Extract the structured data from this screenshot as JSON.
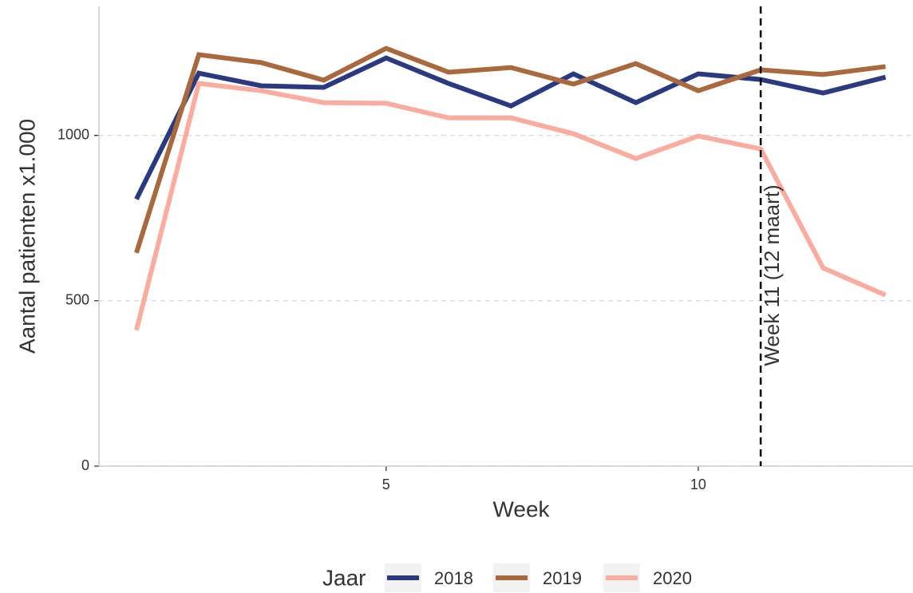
{
  "chart_data": {
    "type": "line",
    "xlabel": "Week",
    "ylabel": "Aantal patienten x1.000",
    "x": [
      1,
      2,
      3,
      4,
      5,
      6,
      7,
      8,
      9,
      10,
      11,
      12,
      13
    ],
    "series": [
      {
        "name": "2018",
        "color": "#2b3a7e",
        "values": [
          807,
          1188,
          1150,
          1145,
          1234,
          1157,
          1089,
          1186,
          1099,
          1186,
          1169,
          1128,
          1176
        ]
      },
      {
        "name": "2019",
        "color": "#a8693f",
        "values": [
          645,
          1244,
          1220,
          1167,
          1263,
          1191,
          1205,
          1155,
          1217,
          1135,
          1198,
          1184,
          1208
        ]
      },
      {
        "name": "2020",
        "color": "#f8ada0",
        "values": [
          411,
          1157,
          1135,
          1099,
          1097,
          1053,
          1053,
          1005,
          930,
          998,
          959,
          599,
          517
        ]
      }
    ],
    "xlim": [
      0.4,
      13.44
    ],
    "xticks": [
      5,
      10
    ],
    "ylim": [
      0,
      1390
    ],
    "yticks": [
      0,
      500,
      1000
    ],
    "grid": true,
    "legend_title": "Jaar",
    "legend_position": "bottom",
    "annotation": {
      "x": 11,
      "label": "Week 11 (12 maart)"
    }
  }
}
